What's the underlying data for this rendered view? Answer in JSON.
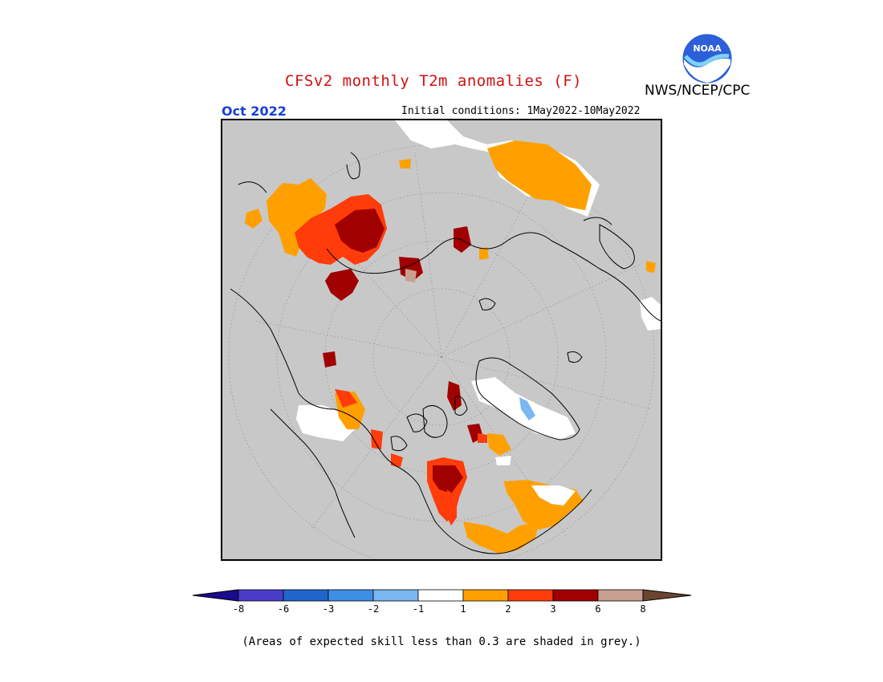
{
  "title": "CFSv2 monthly T2m anomalies (F)",
  "agency": "NWS/NCEP/CPC",
  "logo_text": "NOAA",
  "month": "Oct 2022",
  "initial_conditions": "Initial conditions: 1May2022-10May2022",
  "colorbar": {
    "bins": [
      {
        "color": "#1a0a8c",
        "label": "-8"
      },
      {
        "color": "#4b3cc8",
        "label": "-6"
      },
      {
        "color": "#1f66cc",
        "label": "-3"
      },
      {
        "color": "#3d8fe6",
        "label": "-2"
      },
      {
        "color": "#7ab7f0",
        "label": "-1"
      },
      {
        "color": "#ffffff",
        "label": "1"
      },
      {
        "color": "#ffa000",
        "label": "2"
      },
      {
        "color": "#ff3c0a",
        "label": "3"
      },
      {
        "color": "#a00000",
        "label": "6"
      },
      {
        "color": "#c8a090",
        "label": "8"
      },
      {
        "color": "#6b4530",
        "label": ""
      }
    ],
    "ticks": [
      "-8",
      "-6",
      "-3",
      "-2",
      "-1",
      "1",
      "2",
      "3",
      "6",
      "8"
    ]
  },
  "note": "(Areas of expected skill less than 0.3 are shaded in grey.)",
  "colors": {
    "grey_mask": "#c8c8c8",
    "title": "#d01010",
    "month": "#1a3fd6"
  }
}
